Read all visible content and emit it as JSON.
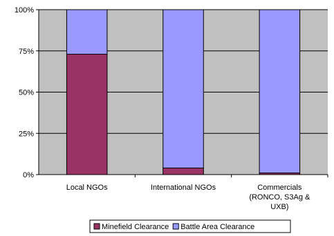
{
  "chart_data": {
    "type": "bar",
    "stacked": true,
    "percent": true,
    "categories": [
      [
        "Local NGOs"
      ],
      [
        "International NGOs"
      ],
      [
        "Commercials",
        "(RONCO, S3Ag &",
        "UXB)"
      ]
    ],
    "series": [
      {
        "name": "Minefield Clearance",
        "color": "#993366",
        "values": [
          73,
          4,
          1
        ]
      },
      {
        "name": "Battle Area Clearance",
        "color": "#9999ff",
        "values": [
          27,
          96,
          99
        ]
      }
    ],
    "y_ticks": [
      "0%",
      "25%",
      "50%",
      "75%",
      "100%"
    ],
    "ylim": [
      0,
      100
    ],
    "grid": true,
    "plot_background": "#c0c0c0",
    "legend_position": "bottom"
  }
}
